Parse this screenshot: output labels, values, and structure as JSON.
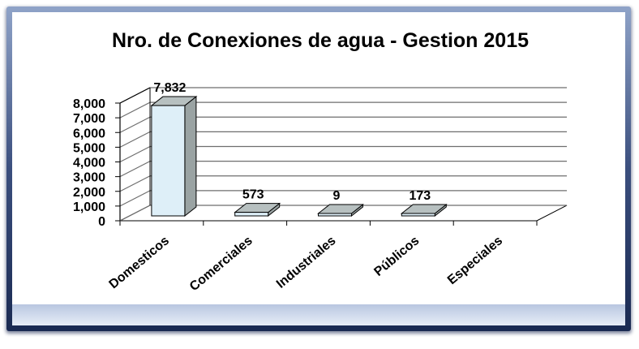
{
  "chart_data": {
    "type": "bar",
    "title": "Nro. de Conexiones de agua - Gestion 2015",
    "categories": [
      "Domesticos",
      "Comerciales",
      "Industriales",
      "Públicos",
      "Especiales"
    ],
    "values": [
      7832,
      573,
      9,
      173,
      null
    ],
    "data_labels": [
      "7,832",
      "573",
      "9",
      "173",
      ""
    ],
    "ylim": [
      0,
      8000
    ],
    "yticks": [
      0,
      1000,
      2000,
      3000,
      4000,
      5000,
      6000,
      7000,
      8000
    ],
    "ytick_labels": [
      "0",
      "1,000",
      "2,000",
      "3,000",
      "4,000",
      "5,000",
      "6,000",
      "7,000",
      "8,000"
    ],
    "xlabel": "",
    "ylabel": "",
    "grid": true,
    "legend": "none",
    "style": "3d-bar",
    "bar_color": "#deeff8",
    "bar_side_color": "#9aa3a3",
    "bar_top_color": "#b7c0c0"
  }
}
